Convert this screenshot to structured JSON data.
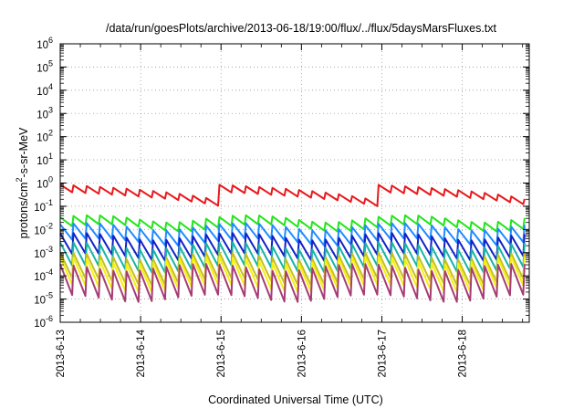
{
  "chart_data": {
    "type": "line",
    "title": "/data/run/goesPlots/archive/2013-06-18/19:00/flux/../flux/5daysMarsFluxes.txt",
    "xlabel": "Coordinated Universal Time (UTC)",
    "ylabel": "protons/cm²-s-sr-MeV",
    "y_scale": "log",
    "ylim_exponents": [
      -6,
      6
    ],
    "y_tick_base": "10",
    "y_tick_exponents": [
      "-6",
      "-5",
      "-4",
      "-3",
      "-2",
      "-1",
      "0",
      "1",
      "2",
      "3",
      "4",
      "5",
      "6"
    ],
    "xlim_days": [
      "2013-6-13",
      "2013-6-18 20:00"
    ],
    "x_tick_labels": [
      "2013-6-13",
      "2013-6-14",
      "2013-6-15",
      "2013-6-16",
      "2013-6-17",
      "2013-6-18"
    ],
    "grid": true,
    "grid_style": "dotted",
    "legend": "none",
    "series": [
      {
        "color": "#e8191c",
        "base": 0.3,
        "swing": 0.5,
        "note_shape": "slow sawtooth with large hourly spikes"
      },
      {
        "color": "#22e51b",
        "base": 0.022,
        "swing": 0.35
      },
      {
        "color": "#1f8bff",
        "base": 0.008,
        "swing": 0.6
      },
      {
        "color": "#1221c8",
        "base": 0.0025,
        "swing": 0.8
      },
      {
        "color": "#19b3a6",
        "base": 0.0009,
        "swing": 0.9
      },
      {
        "color": "#c5bf1f",
        "base": 0.0003,
        "swing": 1.0
      },
      {
        "color": "#f6ef0f",
        "base": 0.00018,
        "swing": 1.1
      },
      {
        "color": "#a53d74",
        "base": 8e-05,
        "swing": 1.2
      }
    ]
  }
}
